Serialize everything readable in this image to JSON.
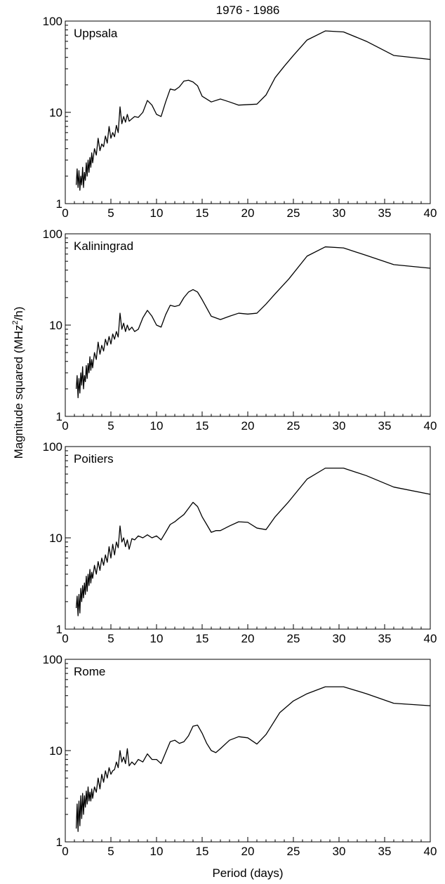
{
  "figure": {
    "title": "1976 - 1986",
    "ylabel_main": "Magnitude squared (MHz",
    "ylabel_sup": "2",
    "ylabel_tail": "/h)",
    "xlabel": "Period (days)"
  },
  "chart_data": [
    {
      "type": "line",
      "panel_label": "Uppsala",
      "xlim": [
        0,
        40
      ],
      "ylim": [
        1,
        100
      ],
      "yscale": "log",
      "x_ticks": [
        0,
        5,
        10,
        15,
        20,
        25,
        30,
        35,
        40
      ],
      "y_ticks": [
        1,
        10,
        100
      ],
      "series": [
        {
          "x": [
            1.2,
            1.3,
            1.4,
            1.5,
            1.6,
            1.7,
            1.8,
            1.9,
            2.0,
            2.1,
            2.2,
            2.3,
            2.4,
            2.5,
            2.6,
            2.7,
            2.8,
            2.9,
            3.0,
            3.2,
            3.4,
            3.6,
            3.8,
            4.0,
            4.2,
            4.4,
            4.6,
            4.8,
            5.0,
            5.2,
            5.4,
            5.6,
            5.8,
            6.0,
            6.2,
            6.4,
            6.6,
            6.8,
            7.0,
            7.3,
            7.6,
            8.0,
            8.5,
            9.0,
            9.5,
            10.0,
            10.5,
            11.0,
            11.5,
            12.0,
            12.5,
            13.0,
            13.5,
            14.0,
            14.5,
            15.0,
            16.0,
            17.0,
            17.5,
            18.0,
            19.0,
            21.0,
            22.0,
            23.0,
            24.0,
            25.0,
            26.5,
            28.5,
            30.5,
            33.0,
            36.0,
            40.0
          ],
          "y": [
            1.6,
            2.4,
            1.5,
            2.3,
            1.4,
            2.0,
            1.6,
            2.5,
            1.5,
            2.2,
            1.8,
            2.8,
            2.0,
            3.0,
            2.2,
            3.2,
            2.5,
            3.6,
            2.8,
            4.0,
            3.4,
            5.2,
            3.8,
            4.5,
            4.2,
            5.5,
            4.6,
            7.0,
            5.2,
            6.0,
            5.4,
            7.2,
            6.0,
            11.5,
            7.5,
            9.0,
            7.8,
            9.5,
            8.0,
            8.5,
            9.0,
            8.8,
            10.0,
            13.5,
            12.0,
            9.5,
            9.0,
            13.0,
            18.0,
            17.5,
            19.0,
            22.0,
            22.5,
            21.5,
            19.5,
            15.0,
            13.0,
            14.0,
            13.5,
            13.0,
            12.0,
            12.3,
            15.5,
            24.0,
            32.0,
            42.0,
            62.0,
            78.0,
            76.0,
            60.0,
            42.0,
            38.0
          ]
        }
      ]
    },
    {
      "type": "line",
      "panel_label": "Kaliningrad",
      "xlim": [
        0,
        40
      ],
      "ylim": [
        1,
        100
      ],
      "yscale": "log",
      "x_ticks": [
        0,
        5,
        10,
        15,
        20,
        25,
        30,
        35,
        40
      ],
      "y_ticks": [
        1,
        10,
        100
      ],
      "series": [
        {
          "x": [
            1.2,
            1.3,
            1.4,
            1.5,
            1.6,
            1.7,
            1.8,
            1.9,
            2.0,
            2.1,
            2.2,
            2.3,
            2.4,
            2.5,
            2.6,
            2.7,
            2.8,
            2.9,
            3.0,
            3.2,
            3.4,
            3.6,
            3.8,
            4.0,
            4.2,
            4.4,
            4.6,
            4.8,
            5.0,
            5.2,
            5.4,
            5.6,
            5.8,
            6.0,
            6.2,
            6.4,
            6.6,
            6.8,
            7.0,
            7.3,
            7.6,
            8.0,
            8.5,
            9.0,
            9.5,
            10.0,
            10.5,
            11.0,
            11.5,
            12.0,
            12.5,
            13.0,
            13.5,
            14.0,
            14.5,
            15.0,
            16.0,
            17.0,
            18.0,
            19.0,
            20.0,
            21.0,
            22.0,
            23.0,
            24.5,
            26.5,
            28.5,
            30.5,
            33.0,
            36.0,
            40.0
          ],
          "y": [
            2.0,
            2.8,
            1.6,
            2.6,
            1.8,
            3.0,
            2.2,
            3.5,
            2.0,
            2.8,
            2.4,
            3.6,
            2.6,
            3.8,
            3.0,
            4.5,
            3.2,
            4.2,
            3.4,
            5.0,
            4.2,
            6.5,
            4.8,
            6.0,
            5.2,
            7.0,
            6.0,
            7.5,
            6.2,
            8.0,
            7.0,
            8.5,
            7.4,
            13.5,
            9.0,
            10.5,
            8.5,
            10.0,
            8.8,
            9.5,
            8.5,
            9.0,
            12.0,
            14.5,
            12.5,
            10.0,
            9.5,
            13.0,
            16.5,
            16.0,
            16.5,
            20.0,
            23.0,
            24.5,
            23.0,
            19.0,
            12.5,
            11.5,
            12.5,
            13.5,
            13.2,
            13.5,
            17.0,
            22.0,
            32.0,
            57.0,
            72.0,
            70.0,
            58.0,
            46.0,
            42.0
          ]
        }
      ]
    },
    {
      "type": "line",
      "panel_label": "Poitiers",
      "xlim": [
        0,
        40
      ],
      "ylim": [
        1,
        100
      ],
      "yscale": "log",
      "x_ticks": [
        0,
        5,
        10,
        15,
        20,
        25,
        30,
        35,
        40
      ],
      "y_ticks": [
        1,
        10,
        100
      ],
      "series": [
        {
          "x": [
            1.2,
            1.3,
            1.4,
            1.5,
            1.6,
            1.7,
            1.8,
            1.9,
            2.0,
            2.1,
            2.2,
            2.3,
            2.4,
            2.5,
            2.6,
            2.7,
            2.8,
            2.9,
            3.0,
            3.2,
            3.4,
            3.6,
            3.8,
            4.0,
            4.2,
            4.4,
            4.6,
            4.8,
            5.0,
            5.2,
            5.4,
            5.6,
            5.8,
            6.0,
            6.2,
            6.4,
            6.6,
            6.8,
            7.0,
            7.3,
            7.6,
            8.0,
            8.5,
            9.0,
            9.5,
            10.0,
            10.5,
            11.0,
            11.5,
            12.0,
            12.5,
            13.0,
            13.5,
            14.0,
            14.5,
            15.0,
            15.5,
            16.0,
            16.5,
            17.0,
            18.0,
            19.0,
            20.0,
            21.0,
            22.0,
            23.0,
            24.5,
            26.5,
            28.5,
            30.5,
            33.0,
            36.0,
            40.0
          ],
          "y": [
            1.7,
            2.3,
            1.4,
            2.4,
            1.5,
            2.8,
            2.0,
            3.0,
            2.2,
            3.2,
            2.4,
            3.8,
            2.6,
            4.0,
            3.0,
            4.5,
            3.2,
            4.2,
            3.6,
            5.0,
            4.0,
            5.5,
            4.4,
            6.0,
            5.0,
            6.5,
            5.4,
            8.0,
            6.0,
            8.5,
            6.5,
            9.0,
            7.8,
            13.5,
            9.0,
            10.0,
            8.0,
            9.5,
            7.5,
            9.8,
            9.5,
            10.5,
            10.0,
            10.8,
            10.0,
            10.5,
            9.5,
            11.5,
            14.0,
            15.0,
            16.5,
            18.0,
            21.0,
            24.5,
            22.0,
            17.0,
            14.0,
            11.5,
            12.0,
            12.0,
            13.5,
            15.0,
            14.8,
            12.8,
            12.3,
            17.0,
            25.0,
            44.0,
            58.0,
            58.0,
            48.0,
            36.0,
            30.0
          ]
        }
      ]
    },
    {
      "type": "line",
      "panel_label": "Rome",
      "xlim": [
        0,
        40
      ],
      "ylim": [
        1,
        100
      ],
      "yscale": "log",
      "x_ticks": [
        0,
        5,
        10,
        15,
        20,
        25,
        30,
        35,
        40
      ],
      "y_ticks": [
        1,
        10,
        100
      ],
      "series": [
        {
          "x": [
            1.2,
            1.3,
            1.4,
            1.5,
            1.6,
            1.7,
            1.8,
            1.9,
            2.0,
            2.1,
            2.2,
            2.3,
            2.4,
            2.5,
            2.6,
            2.7,
            2.8,
            2.9,
            3.0,
            3.2,
            3.4,
            3.6,
            3.8,
            4.0,
            4.2,
            4.4,
            4.6,
            4.8,
            5.0,
            5.2,
            5.4,
            5.6,
            5.8,
            6.0,
            6.2,
            6.4,
            6.6,
            6.8,
            7.0,
            7.3,
            7.6,
            8.0,
            8.5,
            9.0,
            9.5,
            10.0,
            10.5,
            11.0,
            11.5,
            12.0,
            12.5,
            13.0,
            13.5,
            14.0,
            14.5,
            15.0,
            15.5,
            16.0,
            16.5,
            17.0,
            18.0,
            19.0,
            20.0,
            21.0,
            22.0,
            23.5,
            25.0,
            26.5,
            28.5,
            30.5,
            33.0,
            36.0,
            40.0
          ],
          "y": [
            1.4,
            2.6,
            1.3,
            2.8,
            1.5,
            3.2,
            1.8,
            3.4,
            2.0,
            3.2,
            2.4,
            3.6,
            2.6,
            4.0,
            2.8,
            3.5,
            2.8,
            3.8,
            3.0,
            4.0,
            3.5,
            5.0,
            3.8,
            5.5,
            4.5,
            6.0,
            5.0,
            6.5,
            5.5,
            6.0,
            6.2,
            7.5,
            6.5,
            10.0,
            7.5,
            8.5,
            7.2,
            10.5,
            6.8,
            7.5,
            7.0,
            8.0,
            7.5,
            9.2,
            8.0,
            8.0,
            7.2,
            9.5,
            12.5,
            13.0,
            12.0,
            12.5,
            14.5,
            18.5,
            19.0,
            15.5,
            12.0,
            10.0,
            9.5,
            10.5,
            13.0,
            14.2,
            13.8,
            11.8,
            15.0,
            26.0,
            35.0,
            42.0,
            50.0,
            50.0,
            42.0,
            33.0,
            31.0
          ]
        }
      ]
    }
  ]
}
